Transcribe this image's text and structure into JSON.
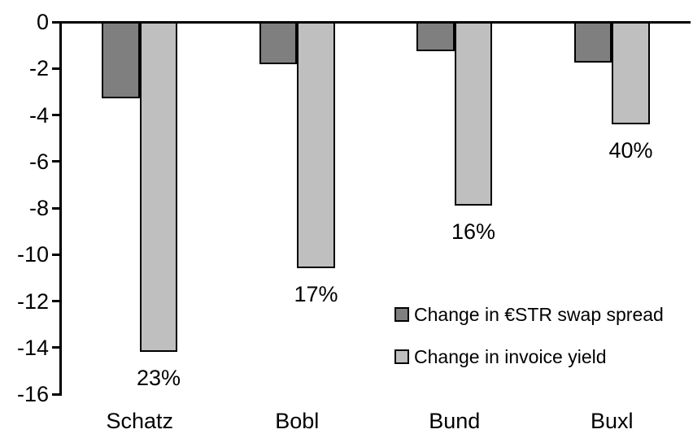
{
  "chart_data": {
    "type": "bar",
    "title": "",
    "xlabel": "",
    "ylabel": "",
    "categories": [
      "Schatz",
      "Bobl",
      "Bund",
      "Buxl"
    ],
    "series": [
      {
        "name": "Change in €STR swap spread",
        "color": "#7F7F7F",
        "values": [
          -3.3,
          -1.8,
          -1.25,
          -1.75
        ]
      },
      {
        "name": "Change in invoice yield",
        "color": "#BFBFBF",
        "values": [
          -14.2,
          -10.6,
          -7.9,
          -4.4
        ],
        "point_labels": [
          "23%",
          "17%",
          "16%",
          "40%"
        ]
      }
    ],
    "ylim": [
      -16,
      0
    ],
    "yticks": [
      0,
      -2,
      -4,
      -6,
      -8,
      -10,
      -12,
      -14,
      -16
    ],
    "grid": false,
    "legend_position": "inside-lower-right",
    "bar_border_color": "#000000",
    "axis_color": "#000000",
    "background": "#FFFFFF"
  }
}
